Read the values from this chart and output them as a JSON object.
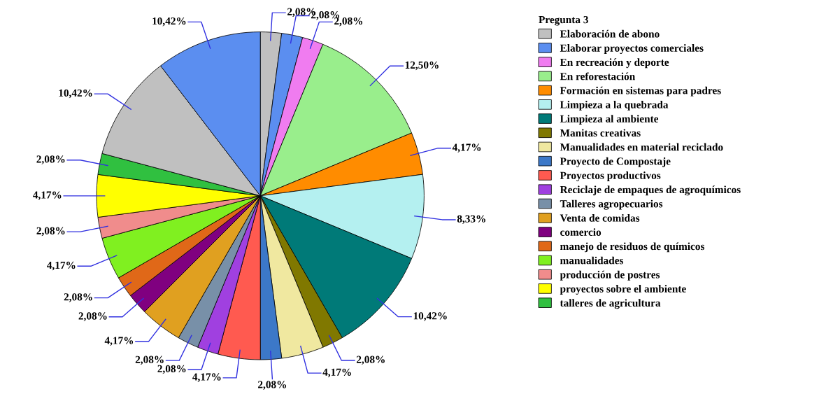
{
  "chart_data": {
    "type": "pie",
    "legend_title": "Pregunta 3",
    "legend": "right",
    "categories": [
      "Elaboración de abono",
      "Elaborar proyectos comerciales",
      "En recreación y deporte",
      "En reforestación",
      "Formación en sistemas para padres",
      "Limpieza a la quebrada",
      "Limpieza al ambiente",
      "Manitas creativas",
      "Manualidades en material reciclado",
      "Proyecto de Compostaje",
      "Proyectos productivos",
      "Reciclaje de empaques de agroquímicos",
      "Talleres agropecuarios",
      "Venta de comidas",
      "comercio",
      "manejo de residuos de químicos",
      "manualidades",
      "producción de postres",
      "proyectos sobre el ambiente",
      "talleres de agricultura",
      null,
      null
    ],
    "values": [
      2.08,
      2.08,
      2.08,
      12.5,
      4.17,
      8.33,
      10.42,
      2.08,
      4.17,
      2.08,
      4.17,
      2.08,
      2.08,
      4.17,
      2.08,
      2.08,
      4.17,
      2.08,
      4.17,
      2.08,
      10.42,
      10.42
    ],
    "value_labels": [
      "2,08%",
      "2,08%",
      "2,08%",
      "12,50%",
      "4,17%",
      "8,33%",
      "10,42%",
      "2,08%",
      "4,17%",
      "2,08%",
      "4,17%",
      "2,08%",
      "2,08%",
      "4,17%",
      "2,08%",
      "2,08%",
      "4,17%",
      "2,08%",
      "4,17%",
      "2,08%",
      "10,42%",
      "10,42%"
    ],
    "colors": [
      "#c0c0c0",
      "#5b8ef0",
      "#f07cf0",
      "#99ee8c",
      "#ff8c00",
      "#b4f0f0",
      "#007a78",
      "#807800",
      "#f0e8a0",
      "#3c78c8",
      "#ff5a50",
      "#a040e0",
      "#7890a8",
      "#e0a020",
      "#800080",
      "#e06818",
      "#80f020",
      "#f08c8c",
      "#ffff00",
      "#30c040",
      "#c0c0c0",
      "#5b8ef0"
    ]
  }
}
